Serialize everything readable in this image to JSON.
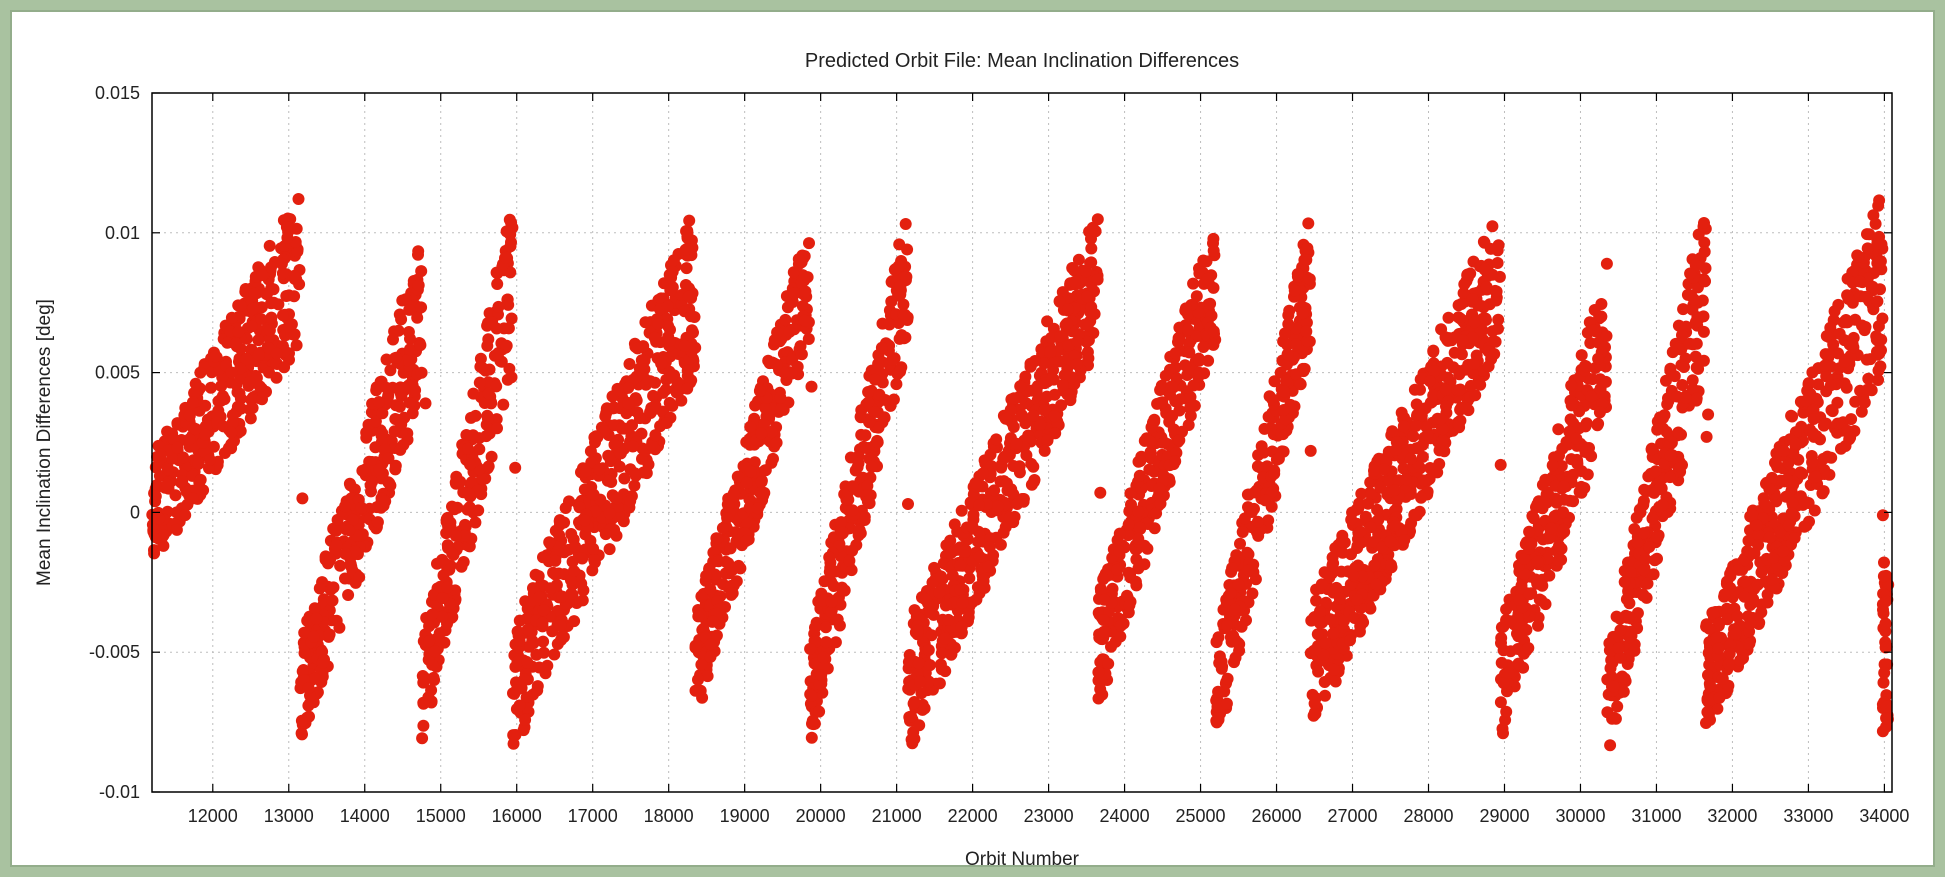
{
  "chart_data": {
    "type": "scatter",
    "title": "Predicted Orbit File: Mean Inclination Differences",
    "xlabel": "Orbit Number",
    "ylabel": "Mean Inclination Differences [deg]",
    "xlim": [
      11200,
      34100
    ],
    "ylim": [
      -0.01,
      0.015
    ],
    "x_ticks": [
      12000,
      13000,
      14000,
      15000,
      16000,
      17000,
      18000,
      19000,
      20000,
      21000,
      22000,
      23000,
      24000,
      25000,
      26000,
      27000,
      28000,
      29000,
      30000,
      31000,
      32000,
      33000,
      34000
    ],
    "x_tick_labels": [
      "12000",
      "13000",
      "14000",
      "15000",
      "16000",
      "17000",
      "18000",
      "19000",
      "20000",
      "21000",
      "22000",
      "23000",
      "24000",
      "25000",
      "26000",
      "27000",
      "28000",
      "29000",
      "30000",
      "31000",
      "32000",
      "33000",
      "34000"
    ],
    "y_ticks": [
      -0.01,
      -0.005,
      0,
      0.005,
      0.01,
      0.015
    ],
    "y_tick_labels": [
      "-0.01",
      "-0.005",
      "0",
      "0.005",
      "0.01",
      "0.015"
    ],
    "grid": true,
    "series_color": "#e3200f",
    "segments": [
      {
        "x_start": 11200,
        "x_end": 13150,
        "y_low_start": -0.002,
        "y_high_start": 0.002,
        "y_low_end": 0.006,
        "y_high_end": 0.0115
      },
      {
        "x_start": 13150,
        "x_end": 14750,
        "y_low_start": -0.0083,
        "y_high_start": -0.0045,
        "y_low_end": 0.004,
        "y_high_end": 0.01
      },
      {
        "x_start": 14750,
        "x_end": 15950,
        "y_low_start": -0.0082,
        "y_high_start": -0.0045,
        "y_low_end": 0.005,
        "y_high_end": 0.0115
      },
      {
        "x_start": 15950,
        "x_end": 18350,
        "y_low_start": -0.0086,
        "y_high_start": -0.004,
        "y_low_end": 0.005,
        "y_high_end": 0.011
      },
      {
        "x_start": 18350,
        "x_end": 19850,
        "y_low_start": -0.0075,
        "y_high_start": -0.0035,
        "y_low_end": 0.006,
        "y_high_end": 0.0105
      },
      {
        "x_start": 19850,
        "x_end": 21150,
        "y_low_start": -0.0086,
        "y_high_start": -0.0045,
        "y_low_end": 0.006,
        "y_high_end": 0.011
      },
      {
        "x_start": 21150,
        "x_end": 23650,
        "y_low_start": -0.0086,
        "y_high_start": -0.004,
        "y_low_end": 0.006,
        "y_high_end": 0.0108
      },
      {
        "x_start": 23650,
        "x_end": 25200,
        "y_low_start": -0.007,
        "y_high_start": -0.003,
        "y_low_end": 0.006,
        "y_high_end": 0.011
      },
      {
        "x_start": 25200,
        "x_end": 26450,
        "y_low_start": -0.0086,
        "y_high_start": -0.0045,
        "y_low_end": 0.006,
        "y_high_end": 0.0108
      },
      {
        "x_start": 26450,
        "x_end": 28950,
        "y_low_start": -0.0081,
        "y_high_start": -0.003,
        "y_low_end": 0.006,
        "y_high_end": 0.011
      },
      {
        "x_start": 28950,
        "x_end": 30350,
        "y_low_start": -0.008,
        "y_high_start": -0.004,
        "y_low_end": 0.003,
        "y_high_end": 0.009
      },
      {
        "x_start": 30350,
        "x_end": 31650,
        "y_low_start": -0.0088,
        "y_high_start": -0.005,
        "y_low_end": 0.005,
        "y_high_end": 0.0113
      },
      {
        "x_start": 31650,
        "x_end": 33980,
        "y_low_start": -0.008,
        "y_high_start": -0.004,
        "y_low_end": 0.005,
        "y_high_end": 0.0115
      },
      {
        "x_start": 33980,
        "x_end": 34050,
        "y_low_start": -0.008,
        "y_high_start": -0.0015,
        "y_low_end": -0.0075,
        "y_high_end": -0.0015
      }
    ],
    "outliers": [
      {
        "x": 13180,
        "y": 0.0005
      },
      {
        "x": 14800,
        "y": 0.0039
      },
      {
        "x": 15980,
        "y": 0.0016
      },
      {
        "x": 19880,
        "y": 0.0045
      },
      {
        "x": 21150,
        "y": 0.0003
      },
      {
        "x": 23680,
        "y": 0.0007
      },
      {
        "x": 26450,
        "y": 0.0022
      },
      {
        "x": 28950,
        "y": 0.0017
      },
      {
        "x": 28980,
        "y": -0.0079
      },
      {
        "x": 31660,
        "y": 0.0027
      },
      {
        "x": 31680,
        "y": 0.0035
      },
      {
        "x": 33980,
        "y": -0.0001
      }
    ]
  }
}
